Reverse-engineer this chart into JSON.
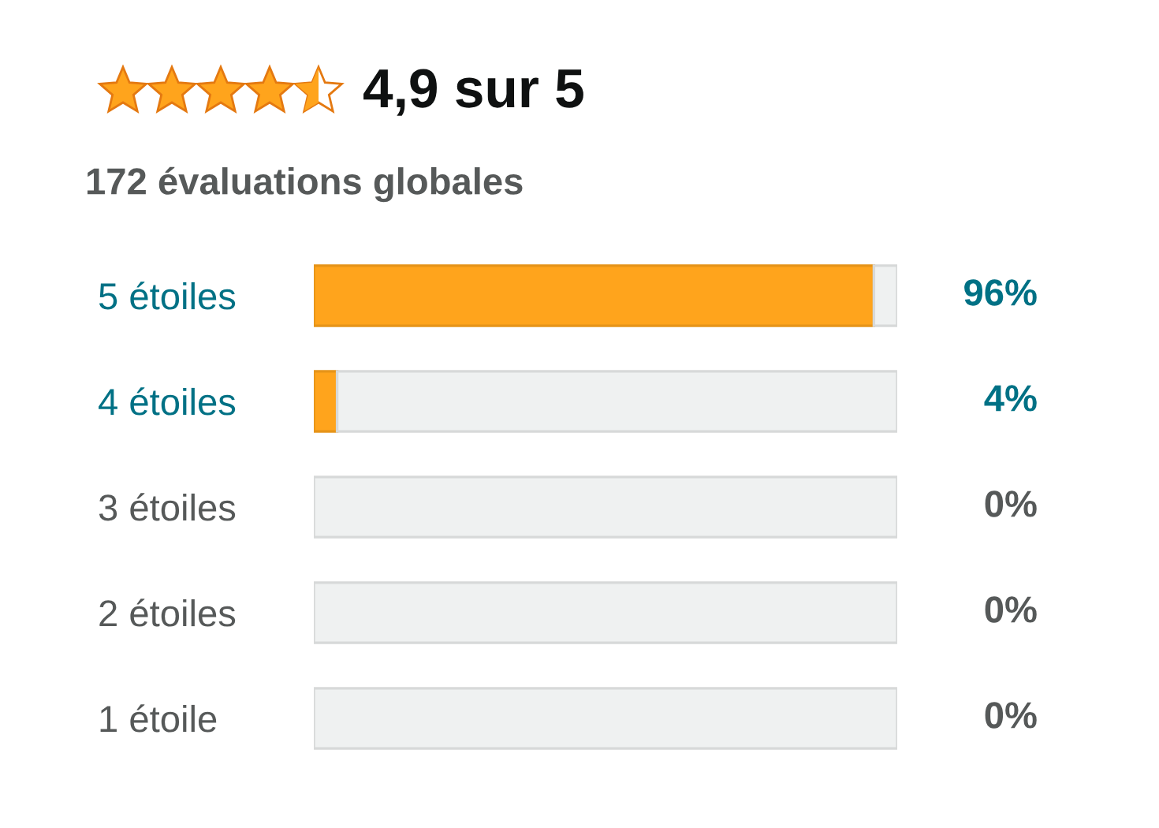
{
  "chart_data": {
    "type": "bar",
    "orientation": "horizontal",
    "stacked": true,
    "title": "4,9 sur 5",
    "subtitle": "172 évaluations globales",
    "categories": [
      "5 étoiles",
      "4 étoiles",
      "3 étoiles",
      "2 étoiles",
      "1 étoile"
    ],
    "series": [
      {
        "color": "#ffa41c",
        "values": [
          96,
          4,
          0,
          0,
          0
        ],
        "value_labels": [
          "96%",
          "4%",
          "0%",
          "0%",
          "0%"
        ]
      },
      {
        "color": "#eff1f1",
        "values": [
          4,
          96,
          100,
          100,
          100
        ]
      }
    ],
    "xlim": [
      0,
      100
    ],
    "tick_labels": "y"
  }
}
